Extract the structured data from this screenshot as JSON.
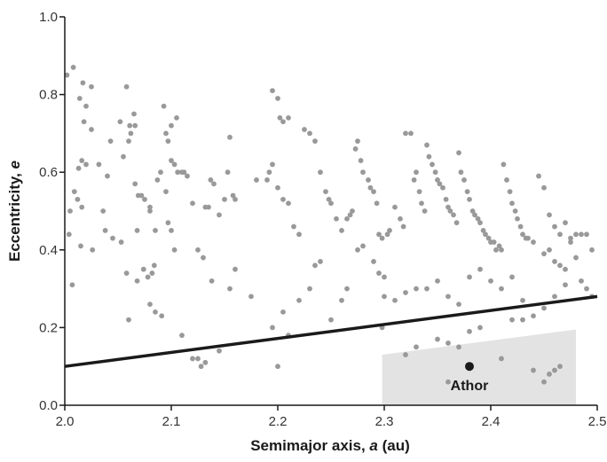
{
  "chart_data": {
    "type": "scatter",
    "title": "",
    "xlabel": {
      "prefix": "Semimajor axis, ",
      "symbol": "a",
      "suffix": " (au)"
    },
    "ylabel": {
      "prefix": "Eccentricity, ",
      "symbol": "e",
      "suffix": ""
    },
    "xlim": [
      2.0,
      2.5
    ],
    "ylim": [
      0.0,
      1.0
    ],
    "xticks": [
      2.0,
      2.1,
      2.2,
      2.3,
      2.4,
      2.5
    ],
    "yticks": [
      0.0,
      0.2,
      0.4,
      0.6,
      0.8,
      1.0
    ],
    "xtick_labels": [
      "2.0",
      "2.1",
      "2.2",
      "2.3",
      "2.4",
      "2.5"
    ],
    "ytick_labels": [
      "0.0",
      "0.2",
      "0.4",
      "0.6",
      "0.8",
      "1.0"
    ],
    "grid": false,
    "colors": {
      "points": "#999999",
      "line": "#1a1a1a",
      "region": "#e3e3e3",
      "highlight": "#1a1a1a",
      "axis": "#1a1a1a"
    },
    "boundary_line": {
      "x": [
        2.0,
        2.5
      ],
      "y": [
        0.1,
        0.28
      ]
    },
    "shaded_region": {
      "x": [
        2.298,
        2.298,
        2.48,
        2.48
      ],
      "y": [
        0.0,
        0.13,
        0.195,
        0.0
      ]
    },
    "highlight": {
      "name": "Athor",
      "x": 2.38,
      "y": 0.1
    },
    "points": [
      [
        2.002,
        0.85
      ],
      [
        2.008,
        0.87
      ],
      [
        2.013,
        0.61
      ],
      [
        2.017,
        0.83
      ],
      [
        2.014,
        0.79
      ],
      [
        2.02,
        0.77
      ],
      [
        2.025,
        0.82
      ],
      [
        2.018,
        0.73
      ],
      [
        2.025,
        0.71
      ],
      [
        2.016,
        0.63
      ],
      [
        2.02,
        0.62
      ],
      [
        2.009,
        0.55
      ],
      [
        2.012,
        0.53
      ],
      [
        2.005,
        0.5
      ],
      [
        2.016,
        0.51
      ],
      [
        2.004,
        0.44
      ],
      [
        2.007,
        0.31
      ],
      [
        2.015,
        0.41
      ],
      [
        2.026,
        0.4
      ],
      [
        2.032,
        0.62
      ],
      [
        2.036,
        0.5
      ],
      [
        2.04,
        0.59
      ],
      [
        2.043,
        0.68
      ],
      [
        2.052,
        0.73
      ],
      [
        2.058,
        0.82
      ],
      [
        2.055,
        0.64
      ],
      [
        2.06,
        0.68
      ],
      [
        2.061,
        0.72
      ],
      [
        2.062,
        0.7
      ],
      [
        2.065,
        0.75
      ],
      [
        2.066,
        0.72
      ],
      [
        2.038,
        0.45
      ],
      [
        2.045,
        0.43
      ],
      [
        2.053,
        0.42
      ],
      [
        2.058,
        0.34
      ],
      [
        2.066,
        0.57
      ],
      [
        2.069,
        0.54
      ],
      [
        2.072,
        0.54
      ],
      [
        2.075,
        0.53
      ],
      [
        2.08,
        0.51
      ],
      [
        2.068,
        0.45
      ],
      [
        2.068,
        0.32
      ],
      [
        2.074,
        0.35
      ],
      [
        2.078,
        0.33
      ],
      [
        2.082,
        0.34
      ],
      [
        2.084,
        0.36
      ],
      [
        2.06,
        0.22
      ],
      [
        2.08,
        0.26
      ],
      [
        2.085,
        0.24
      ],
      [
        2.091,
        0.23
      ],
      [
        2.08,
        0.5
      ],
      [
        2.085,
        0.45
      ],
      [
        2.087,
        0.58
      ],
      [
        2.09,
        0.6
      ],
      [
        2.093,
        0.77
      ],
      [
        2.095,
        0.7
      ],
      [
        2.097,
        0.68
      ],
      [
        2.1,
        0.63
      ],
      [
        2.103,
        0.62
      ],
      [
        2.105,
        0.74
      ],
      [
        2.1,
        0.72
      ],
      [
        2.095,
        0.55
      ],
      [
        2.097,
        0.47
      ],
      [
        2.1,
        0.45
      ],
      [
        2.103,
        0.4
      ],
      [
        2.106,
        0.6
      ],
      [
        2.11,
        0.6
      ],
      [
        2.112,
        0.6
      ],
      [
        2.115,
        0.59
      ],
      [
        2.12,
        0.52
      ],
      [
        2.125,
        0.4
      ],
      [
        2.13,
        0.38
      ],
      [
        2.132,
        0.51
      ],
      [
        2.135,
        0.51
      ],
      [
        2.137,
        0.58
      ],
      [
        2.14,
        0.57
      ],
      [
        2.145,
        0.49
      ],
      [
        2.15,
        0.53
      ],
      [
        2.153,
        0.6
      ],
      [
        2.158,
        0.54
      ],
      [
        2.16,
        0.53
      ],
      [
        2.155,
        0.69
      ],
      [
        2.128,
        0.1
      ],
      [
        2.125,
        0.12
      ],
      [
        2.12,
        0.12
      ],
      [
        2.132,
        0.11
      ],
      [
        2.11,
        0.18
      ],
      [
        2.145,
        0.14
      ],
      [
        2.155,
        0.3
      ],
      [
        2.16,
        0.35
      ],
      [
        2.138,
        0.32
      ],
      [
        2.175,
        0.28
      ],
      [
        2.18,
        0.58
      ],
      [
        2.19,
        0.58
      ],
      [
        2.192,
        0.6
      ],
      [
        2.195,
        0.81
      ],
      [
        2.2,
        0.79
      ],
      [
        2.202,
        0.74
      ],
      [
        2.205,
        0.73
      ],
      [
        2.21,
        0.74
      ],
      [
        2.195,
        0.62
      ],
      [
        2.2,
        0.56
      ],
      [
        2.205,
        0.53
      ],
      [
        2.21,
        0.52
      ],
      [
        2.215,
        0.46
      ],
      [
        2.22,
        0.44
      ],
      [
        2.225,
        0.71
      ],
      [
        2.23,
        0.7
      ],
      [
        2.235,
        0.68
      ],
      [
        2.24,
        0.6
      ],
      [
        2.245,
        0.55
      ],
      [
        2.248,
        0.53
      ],
      [
        2.25,
        0.52
      ],
      [
        2.255,
        0.48
      ],
      [
        2.26,
        0.45
      ],
      [
        2.265,
        0.48
      ],
      [
        2.268,
        0.49
      ],
      [
        2.27,
        0.5
      ],
      [
        2.273,
        0.66
      ],
      [
        2.275,
        0.68
      ],
      [
        2.278,
        0.63
      ],
      [
        2.28,
        0.6
      ],
      [
        2.285,
        0.58
      ],
      [
        2.287,
        0.56
      ],
      [
        2.29,
        0.55
      ],
      [
        2.293,
        0.52
      ],
      [
        2.295,
        0.44
      ],
      [
        2.298,
        0.43
      ],
      [
        2.2,
        0.1
      ],
      [
        2.195,
        0.2
      ],
      [
        2.205,
        0.24
      ],
      [
        2.21,
        0.18
      ],
      [
        2.22,
        0.27
      ],
      [
        2.23,
        0.3
      ],
      [
        2.235,
        0.36
      ],
      [
        2.24,
        0.37
      ],
      [
        2.25,
        0.22
      ],
      [
        2.26,
        0.27
      ],
      [
        2.265,
        0.3
      ],
      [
        2.275,
        0.4
      ],
      [
        2.28,
        0.41
      ],
      [
        2.29,
        0.37
      ],
      [
        2.295,
        0.34
      ],
      [
        2.298,
        0.2
      ],
      [
        2.3,
        0.33
      ],
      [
        2.303,
        0.44
      ],
      [
        2.305,
        0.45
      ],
      [
        2.31,
        0.51
      ],
      [
        2.315,
        0.48
      ],
      [
        2.318,
        0.46
      ],
      [
        2.32,
        0.7
      ],
      [
        2.325,
        0.7
      ],
      [
        2.328,
        0.58
      ],
      [
        2.33,
        0.6
      ],
      [
        2.333,
        0.55
      ],
      [
        2.335,
        0.52
      ],
      [
        2.338,
        0.5
      ],
      [
        2.34,
        0.67
      ],
      [
        2.342,
        0.64
      ],
      [
        2.345,
        0.62
      ],
      [
        2.348,
        0.6
      ],
      [
        2.35,
        0.58
      ],
      [
        2.352,
        0.57
      ],
      [
        2.355,
        0.56
      ],
      [
        2.358,
        0.53
      ],
      [
        2.36,
        0.51
      ],
      [
        2.362,
        0.5
      ],
      [
        2.365,
        0.49
      ],
      [
        2.368,
        0.47
      ],
      [
        2.37,
        0.65
      ],
      [
        2.372,
        0.6
      ],
      [
        2.375,
        0.58
      ],
      [
        2.378,
        0.55
      ],
      [
        2.38,
        0.53
      ],
      [
        2.383,
        0.5
      ],
      [
        2.385,
        0.49
      ],
      [
        2.388,
        0.48
      ],
      [
        2.39,
        0.47
      ],
      [
        2.393,
        0.45
      ],
      [
        2.395,
        0.44
      ],
      [
        2.398,
        0.43
      ],
      [
        2.4,
        0.42
      ],
      [
        2.403,
        0.42
      ],
      [
        2.405,
        0.4
      ],
      [
        2.408,
        0.41
      ],
      [
        2.41,
        0.4
      ],
      [
        2.412,
        0.62
      ],
      [
        2.415,
        0.58
      ],
      [
        2.418,
        0.55
      ],
      [
        2.42,
        0.52
      ],
      [
        2.423,
        0.5
      ],
      [
        2.425,
        0.48
      ],
      [
        2.428,
        0.46
      ],
      [
        2.43,
        0.44
      ],
      [
        2.433,
        0.43
      ],
      [
        2.435,
        0.43
      ],
      [
        2.44,
        0.42
      ],
      [
        2.445,
        0.59
      ],
      [
        2.45,
        0.56
      ],
      [
        2.455,
        0.49
      ],
      [
        2.46,
        0.46
      ],
      [
        2.465,
        0.44
      ],
      [
        2.47,
        0.47
      ],
      [
        2.475,
        0.43
      ],
      [
        2.48,
        0.44
      ],
      [
        2.485,
        0.44
      ],
      [
        2.49,
        0.44
      ],
      [
        2.495,
        0.4
      ],
      [
        2.45,
        0.39
      ],
      [
        2.455,
        0.4
      ],
      [
        2.46,
        0.37
      ],
      [
        2.465,
        0.36
      ],
      [
        2.47,
        0.35
      ],
      [
        2.475,
        0.42
      ],
      [
        2.48,
        0.38
      ],
      [
        2.485,
        0.32
      ],
      [
        2.49,
        0.3
      ],
      [
        2.495,
        0.28
      ],
      [
        2.3,
        0.28
      ],
      [
        2.31,
        0.27
      ],
      [
        2.32,
        0.29
      ],
      [
        2.33,
        0.3
      ],
      [
        2.34,
        0.3
      ],
      [
        2.35,
        0.32
      ],
      [
        2.36,
        0.28
      ],
      [
        2.37,
        0.26
      ],
      [
        2.38,
        0.33
      ],
      [
        2.39,
        0.35
      ],
      [
        2.4,
        0.32
      ],
      [
        2.41,
        0.3
      ],
      [
        2.42,
        0.33
      ],
      [
        2.43,
        0.27
      ],
      [
        2.44,
        0.23
      ],
      [
        2.45,
        0.25
      ],
      [
        2.46,
        0.28
      ],
      [
        2.47,
        0.31
      ],
      [
        2.35,
        0.17
      ],
      [
        2.36,
        0.16
      ],
      [
        2.37,
        0.15
      ],
      [
        2.38,
        0.19
      ],
      [
        2.39,
        0.2
      ],
      [
        2.41,
        0.12
      ],
      [
        2.42,
        0.22
      ],
      [
        2.43,
        0.22
      ],
      [
        2.44,
        0.09
      ],
      [
        2.45,
        0.06
      ],
      [
        2.455,
        0.08
      ],
      [
        2.36,
        0.06
      ],
      [
        2.32,
        0.13
      ],
      [
        2.33,
        0.15
      ],
      [
        2.46,
        0.09
      ],
      [
        2.465,
        0.1
      ]
    ]
  }
}
